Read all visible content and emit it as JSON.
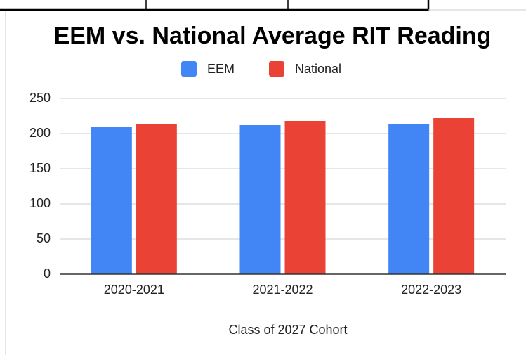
{
  "chart_data": {
    "type": "bar",
    "title": "EEM vs. National Average RIT Reading",
    "x_label": "Class of 2027 Cohort",
    "categories": [
      "2020-2021",
      "2021-2022",
      "2022-2023"
    ],
    "series": [
      {
        "name": "EEM",
        "color": "#4285f4",
        "values": [
          210,
          212,
          214
        ]
      },
      {
        "name": "National",
        "color": "#ea4335",
        "values": [
          214,
          218,
          222
        ]
      }
    ],
    "ylim": [
      0,
      250
    ],
    "yticks": [
      0,
      50,
      100,
      150,
      200,
      250
    ],
    "grid": true,
    "legend": "top"
  }
}
